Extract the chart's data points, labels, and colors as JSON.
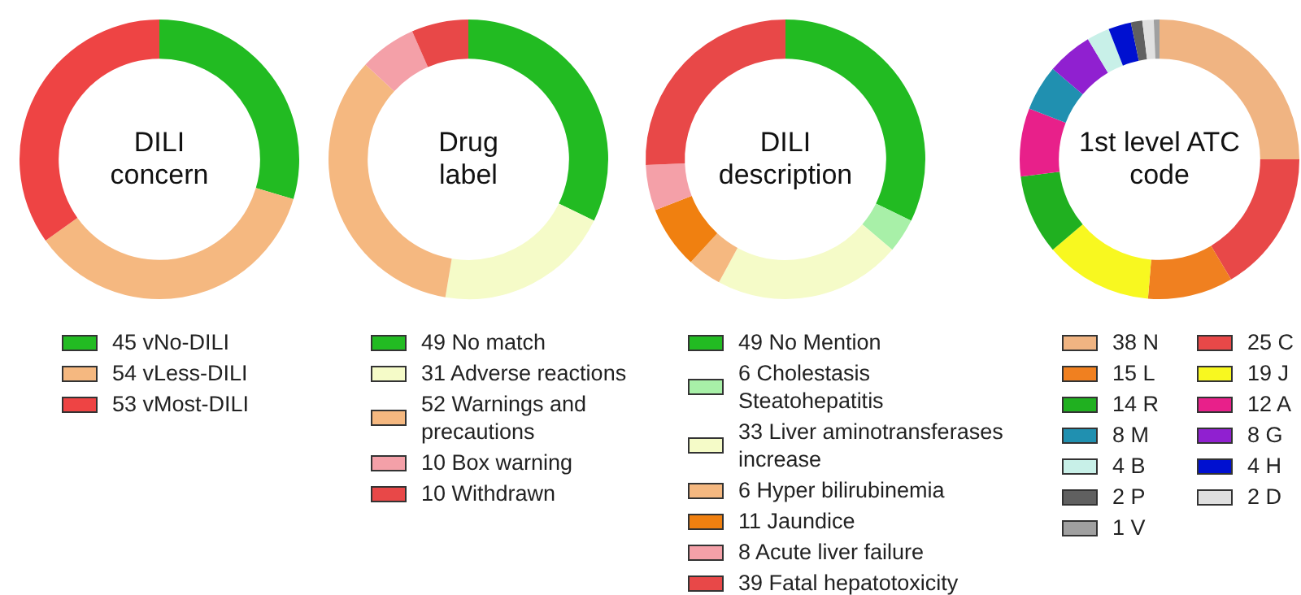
{
  "chart_data": [
    {
      "type": "donut",
      "title": "DILI concern",
      "legend": "bottom",
      "categories": [
        "45 vNo-DILI",
        "54 vLess-DILI",
        "53 vMost-DILI"
      ],
      "values": [
        45,
        54,
        53
      ],
      "colors": [
        "#22bb22",
        "#f5b880",
        "#ee4444"
      ]
    },
    {
      "type": "donut",
      "title": "Drug label",
      "legend": "bottom",
      "categories": [
        "49 No match",
        "31 Adverse reactions",
        "52 Warnings and precautions",
        "10 Box warning",
        "10 Withdrawn"
      ],
      "values": [
        49,
        31,
        52,
        10,
        10
      ],
      "colors": [
        "#22bb22",
        "#f5fbc8",
        "#f5b880",
        "#f4a0a8",
        "#e84848"
      ]
    },
    {
      "type": "donut",
      "title": "DILI description",
      "legend": "bottom",
      "categories": [
        "49 No Mention",
        "6 Cholestasis Steatohepatitis",
        "33 Liver aminotransferases increase",
        "6 Hyper bilirubinemia",
        "11 Jaundice",
        "8 Acute liver failure",
        "39 Fatal hepatotoxicity"
      ],
      "values": [
        49,
        6,
        33,
        6,
        11,
        8,
        39
      ],
      "colors": [
        "#22bb22",
        "#a8f0a8",
        "#f5fbc8",
        "#f5b880",
        "#f08010",
        "#f4a0a8",
        "#e84848"
      ]
    },
    {
      "type": "donut",
      "title": "1st level ATC code",
      "legend": "bottom",
      "categories": [
        "38 N",
        "25 C",
        "15 L",
        "19 J",
        "14 R",
        "12 A",
        "8 M",
        "8 G",
        "4 B",
        "4 H",
        "2 P",
        "2 D",
        "1 V"
      ],
      "values": [
        38,
        25,
        15,
        19,
        14,
        12,
        8,
        8,
        4,
        4,
        2,
        2,
        1
      ],
      "colors": [
        "#f0b482",
        "#e84848",
        "#f08020",
        "#f8f820",
        "#20b020",
        "#e8208a",
        "#2090b0",
        "#9020d0",
        "#c8f0e8",
        "#0010d0",
        "#606060",
        "#e0e0e0",
        "#a0a0a0"
      ]
    }
  ]
}
